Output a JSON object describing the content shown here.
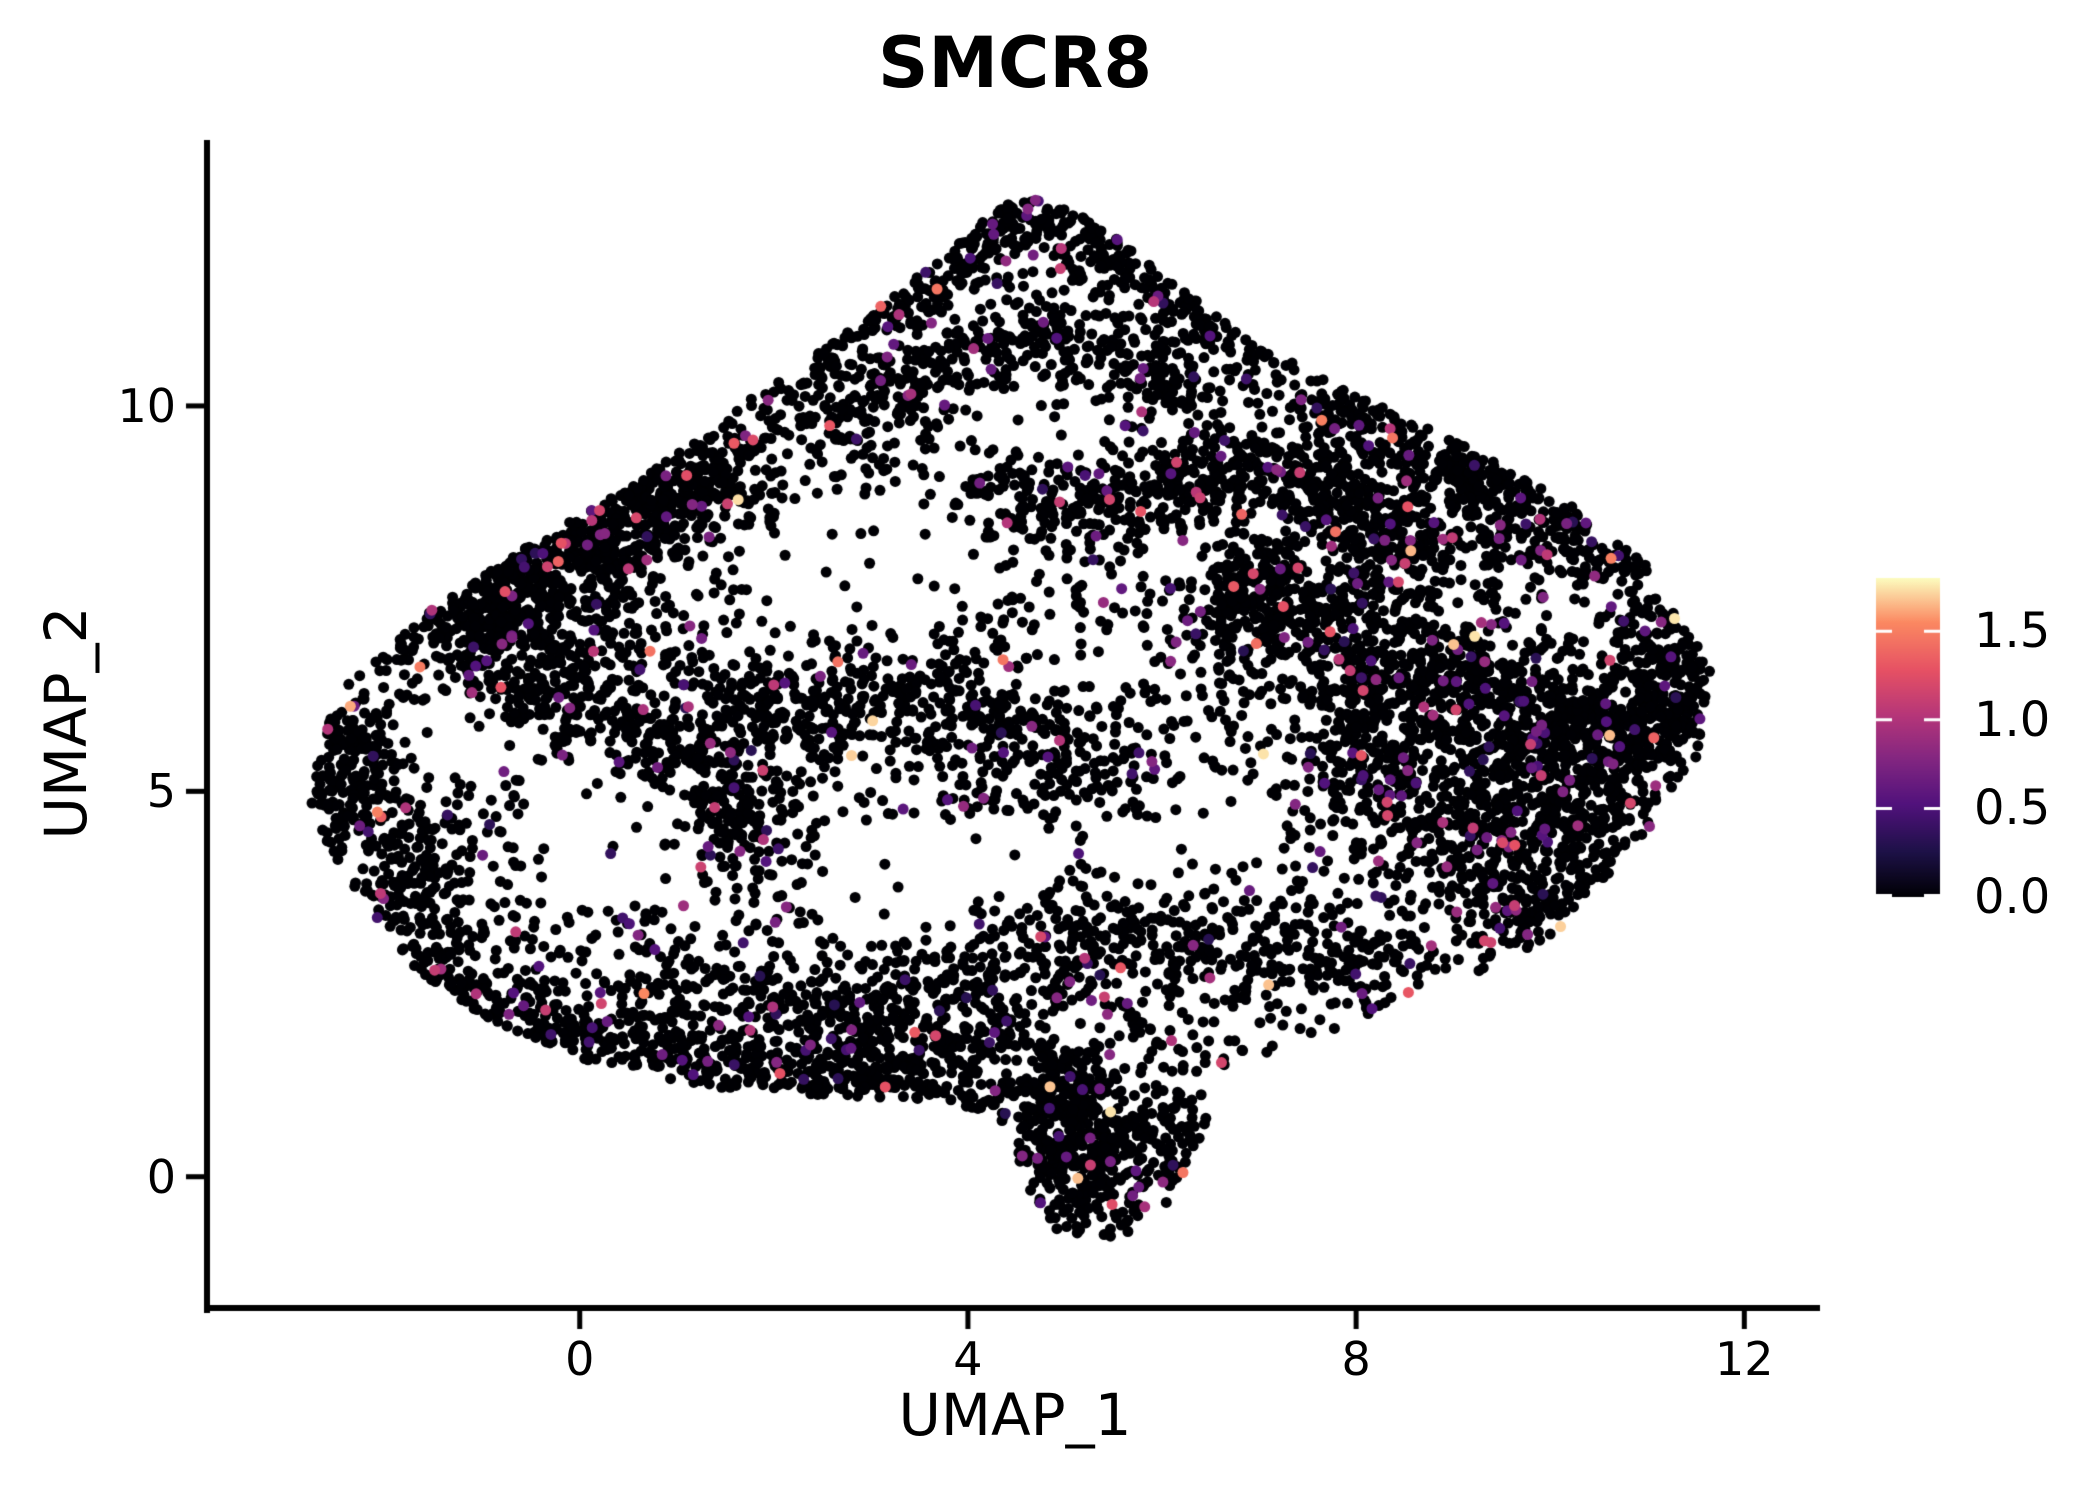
{
  "figure": {
    "title": "SMCR8"
  },
  "chart_data": {
    "type": "scatter",
    "title": "SMCR8",
    "xlabel": "UMAP_1",
    "ylabel": "UMAP_2",
    "x_tick_labels": [
      "0",
      "4",
      "8",
      "12"
    ],
    "x_tick_values": [
      0,
      4,
      8,
      12
    ],
    "y_tick_labels": [
      "0",
      "5",
      "10"
    ],
    "y_tick_values": [
      0,
      5,
      10
    ],
    "x_range": [
      -3.81,
      12.78
    ],
    "y_range": [
      -1.69,
      13.45
    ],
    "grid": false,
    "legend_position": "right-colorbar",
    "colorbar": {
      "tick_labels": [
        "0.0",
        "0.5",
        "1.0",
        "1.5"
      ],
      "tick_values": [
        0,
        0.5,
        1.0,
        1.5
      ],
      "vmin": 0.0,
      "vmax": 1.8,
      "colormap": "magma",
      "stops": [
        [
          0.0,
          "#000004"
        ],
        [
          0.14,
          "#1d1147"
        ],
        [
          0.29,
          "#51127c"
        ],
        [
          0.43,
          "#822681"
        ],
        [
          0.57,
          "#b63679"
        ],
        [
          0.71,
          "#e65164"
        ],
        [
          0.86,
          "#fb8861"
        ],
        [
          1.0,
          "#fcfdbf"
        ]
      ]
    },
    "point_color_zero": "#000004",
    "point_radius_px": 5.5,
    "seed": 20240607,
    "expressed_fraction": 0.05,
    "expression_value_model": {
      "p_low": 0.62,
      "low": [
        0.3,
        0.8
      ],
      "p_mid": 0.3,
      "mid": [
        0.8,
        1.3
      ],
      "p_high": 0.08,
      "high": [
        1.3,
        1.75
      ]
    },
    "boundary_polygon": [
      [
        -2.8,
        4.9
      ],
      [
        -2.5,
        6.3
      ],
      [
        -1.6,
        7.3
      ],
      [
        -0.5,
        8.2
      ],
      [
        0.6,
        9.0
      ],
      [
        1.5,
        9.9
      ],
      [
        2.6,
        10.8
      ],
      [
        3.6,
        11.8
      ],
      [
        4.5,
        12.8
      ],
      [
        5.3,
        12.4
      ],
      [
        6.2,
        11.5
      ],
      [
        7.1,
        10.7
      ],
      [
        8.3,
        10.0
      ],
      [
        9.4,
        9.3
      ],
      [
        10.4,
        8.6
      ],
      [
        11.1,
        7.8
      ],
      [
        11.65,
        6.6
      ],
      [
        11.5,
        5.4
      ],
      [
        10.9,
        4.3
      ],
      [
        10.2,
        3.3
      ],
      [
        9.3,
        2.6
      ],
      [
        8.3,
        2.1
      ],
      [
        7.2,
        1.7
      ],
      [
        6.6,
        1.0
      ],
      [
        6.2,
        0.0
      ],
      [
        5.9,
        -0.7
      ],
      [
        5.0,
        -0.85
      ],
      [
        4.6,
        -0.1
      ],
      [
        4.4,
        0.7
      ],
      [
        3.8,
        1.0
      ],
      [
        2.6,
        1.05
      ],
      [
        1.3,
        1.15
      ],
      [
        0.1,
        1.5
      ],
      [
        -0.9,
        2.0
      ],
      [
        -1.7,
        2.7
      ],
      [
        -2.4,
        3.7
      ]
    ],
    "density_paths": [
      {
        "pts": [
          [
            1.5,
            10.1
          ],
          [
            2.6,
            10.9
          ],
          [
            3.6,
            11.7
          ],
          [
            4.5,
            12.6
          ],
          [
            5.4,
            12.1
          ],
          [
            6.3,
            11.4
          ],
          [
            7.0,
            10.6
          ]
        ],
        "jitter": 0.28,
        "n": 650
      },
      {
        "pts": [
          [
            2.3,
            9.7
          ],
          [
            3.3,
            10.3
          ],
          [
            4.4,
            11.0
          ],
          [
            5.5,
            10.5
          ],
          [
            6.4,
            10.1
          ]
        ],
        "jitter": 0.32,
        "n": 380
      },
      {
        "pts": [
          [
            4.2,
            9.0
          ],
          [
            5.0,
            8.6
          ],
          [
            5.9,
            8.8
          ],
          [
            6.7,
            9.2
          ],
          [
            7.5,
            9.0
          ],
          [
            8.2,
            8.4
          ],
          [
            8.6,
            7.9
          ]
        ],
        "jitter": 0.26,
        "n": 520
      },
      {
        "pts": [
          [
            7.3,
            10.3
          ],
          [
            8.3,
            9.8
          ],
          [
            9.3,
            9.2
          ],
          [
            10.2,
            8.5
          ],
          [
            10.9,
            7.8
          ]
        ],
        "jitter": 0.3,
        "n": 420
      },
      {
        "pts": [
          [
            0.1,
            8.0
          ],
          [
            0.9,
            8.7
          ],
          [
            1.7,
            9.4
          ]
        ],
        "jitter": 0.33,
        "n": 260
      },
      {
        "pts": [
          [
            -1.5,
            7.0
          ],
          [
            -0.7,
            7.8
          ],
          [
            0.2,
            8.6
          ],
          [
            1.0,
            9.2
          ]
        ],
        "jitter": 0.3,
        "n": 300
      },
      {
        "pts": [
          [
            -2.6,
            6.2
          ],
          [
            -2.3,
            5.3
          ],
          [
            -2.5,
            4.6
          ]
        ],
        "jitter": 0.28,
        "n": 180
      },
      {
        "pts": [
          [
            -1.9,
            3.1
          ],
          [
            -1.1,
            2.3
          ],
          [
            -0.1,
            1.9
          ],
          [
            1.1,
            1.5
          ],
          [
            2.3,
            1.35
          ],
          [
            3.5,
            1.55
          ],
          [
            4.5,
            1.9
          ]
        ],
        "jitter": 0.3,
        "n": 650
      },
      {
        "pts": [
          [
            0.6,
            2.7
          ],
          [
            1.8,
            2.35
          ],
          [
            3.0,
            2.2
          ],
          [
            4.2,
            2.6
          ],
          [
            5.2,
            3.0
          ],
          [
            6.4,
            3.2
          ],
          [
            7.6,
            2.9
          ],
          [
            8.6,
            2.5
          ]
        ],
        "jitter": 0.35,
        "n": 560
      },
      {
        "pts": [
          [
            0.9,
            5.5
          ],
          [
            2.0,
            6.0
          ],
          [
            3.1,
            6.3
          ],
          [
            4.1,
            6.0
          ],
          [
            5.0,
            5.5
          ],
          [
            5.8,
            5.1
          ]
        ],
        "jitter": 0.4,
        "n": 480
      },
      {
        "pts": [
          [
            -0.6,
            6.5
          ],
          [
            0.3,
            6.0
          ],
          [
            1.1,
            5.6
          ]
        ],
        "jitter": 0.35,
        "n": 180
      },
      {
        "pts": [
          [
            1.4,
            4.3
          ],
          [
            1.9,
            5.0
          ]
        ],
        "jitter": 0.4,
        "n": 140
      },
      {
        "pts": [
          [
            6.6,
            7.3
          ],
          [
            7.3,
            8.1
          ]
        ],
        "jitter": 0.3,
        "n": 150
      },
      {
        "pts": [
          [
            9.5,
            3.1
          ],
          [
            10.2,
            3.7
          ],
          [
            10.6,
            4.4
          ]
        ],
        "jitter": 0.3,
        "n": 170
      },
      {
        "pts": [
          [
            10.9,
            7.3
          ],
          [
            11.4,
            6.5
          ],
          [
            11.2,
            5.5
          ]
        ],
        "jitter": 0.26,
        "n": 220
      },
      {
        "pts": [
          [
            4.8,
            1.3
          ],
          [
            5.2,
            0.8
          ]
        ],
        "jitter": 0.3,
        "n": 130
      }
    ],
    "density_blobs": [
      {
        "c": [
          -0.9,
          7.35
        ],
        "s": [
          0.85,
          0.6
        ],
        "n": 550
      },
      {
        "c": [
          7.7,
          7.1
        ],
        "s": [
          0.6,
          0.55
        ],
        "n": 260
      },
      {
        "c": [
          8.8,
          6.5
        ],
        "s": [
          0.7,
          0.6
        ],
        "n": 300
      },
      {
        "c": [
          9.8,
          5.9
        ],
        "s": [
          0.55,
          0.5
        ],
        "n": 220
      },
      {
        "c": [
          8.2,
          5.3
        ],
        "s": [
          0.5,
          0.5
        ],
        "n": 180
      },
      {
        "c": [
          9.2,
          4.4
        ],
        "s": [
          0.6,
          0.5
        ],
        "n": 220
      },
      {
        "c": [
          10.3,
          4.9
        ],
        "s": [
          0.45,
          0.45
        ],
        "n": 170
      },
      {
        "c": [
          10.5,
          5.9
        ],
        "s": [
          0.45,
          0.45
        ],
        "n": 170
      },
      {
        "c": [
          5.35,
          0.25
        ],
        "s": [
          0.65,
          0.5
        ],
        "n": 420
      },
      {
        "c": [
          8.6,
          8.8
        ],
        "s": [
          0.8,
          0.5
        ],
        "n": 200
      },
      {
        "c": [
          0.3,
          9.0
        ],
        "s": [
          0.7,
          0.5
        ],
        "n": 180
      },
      {
        "c": [
          3.2,
          1.0
        ],
        "s": [
          0.8,
          0.4
        ],
        "n": 200
      },
      {
        "c": [
          -1.6,
          4.0
        ],
        "s": [
          0.5,
          0.6
        ],
        "n": 180
      }
    ],
    "sparse_holes": [
      [
        2.9,
        7.9,
        1.15,
        0.95
      ],
      [
        4.9,
        10.05,
        0.8,
        0.55
      ],
      [
        0.3,
        4.4,
        1.0,
        0.85
      ],
      [
        -1.15,
        5.75,
        0.7,
        0.55
      ],
      [
        6.3,
        4.5,
        0.95,
        0.8
      ],
      [
        3.3,
        4.0,
        0.85,
        0.7
      ],
      [
        4.4,
        4.2,
        0.7,
        0.55
      ]
    ],
    "background_n": 2500,
    "hole_keep_prob": 0.12
  }
}
